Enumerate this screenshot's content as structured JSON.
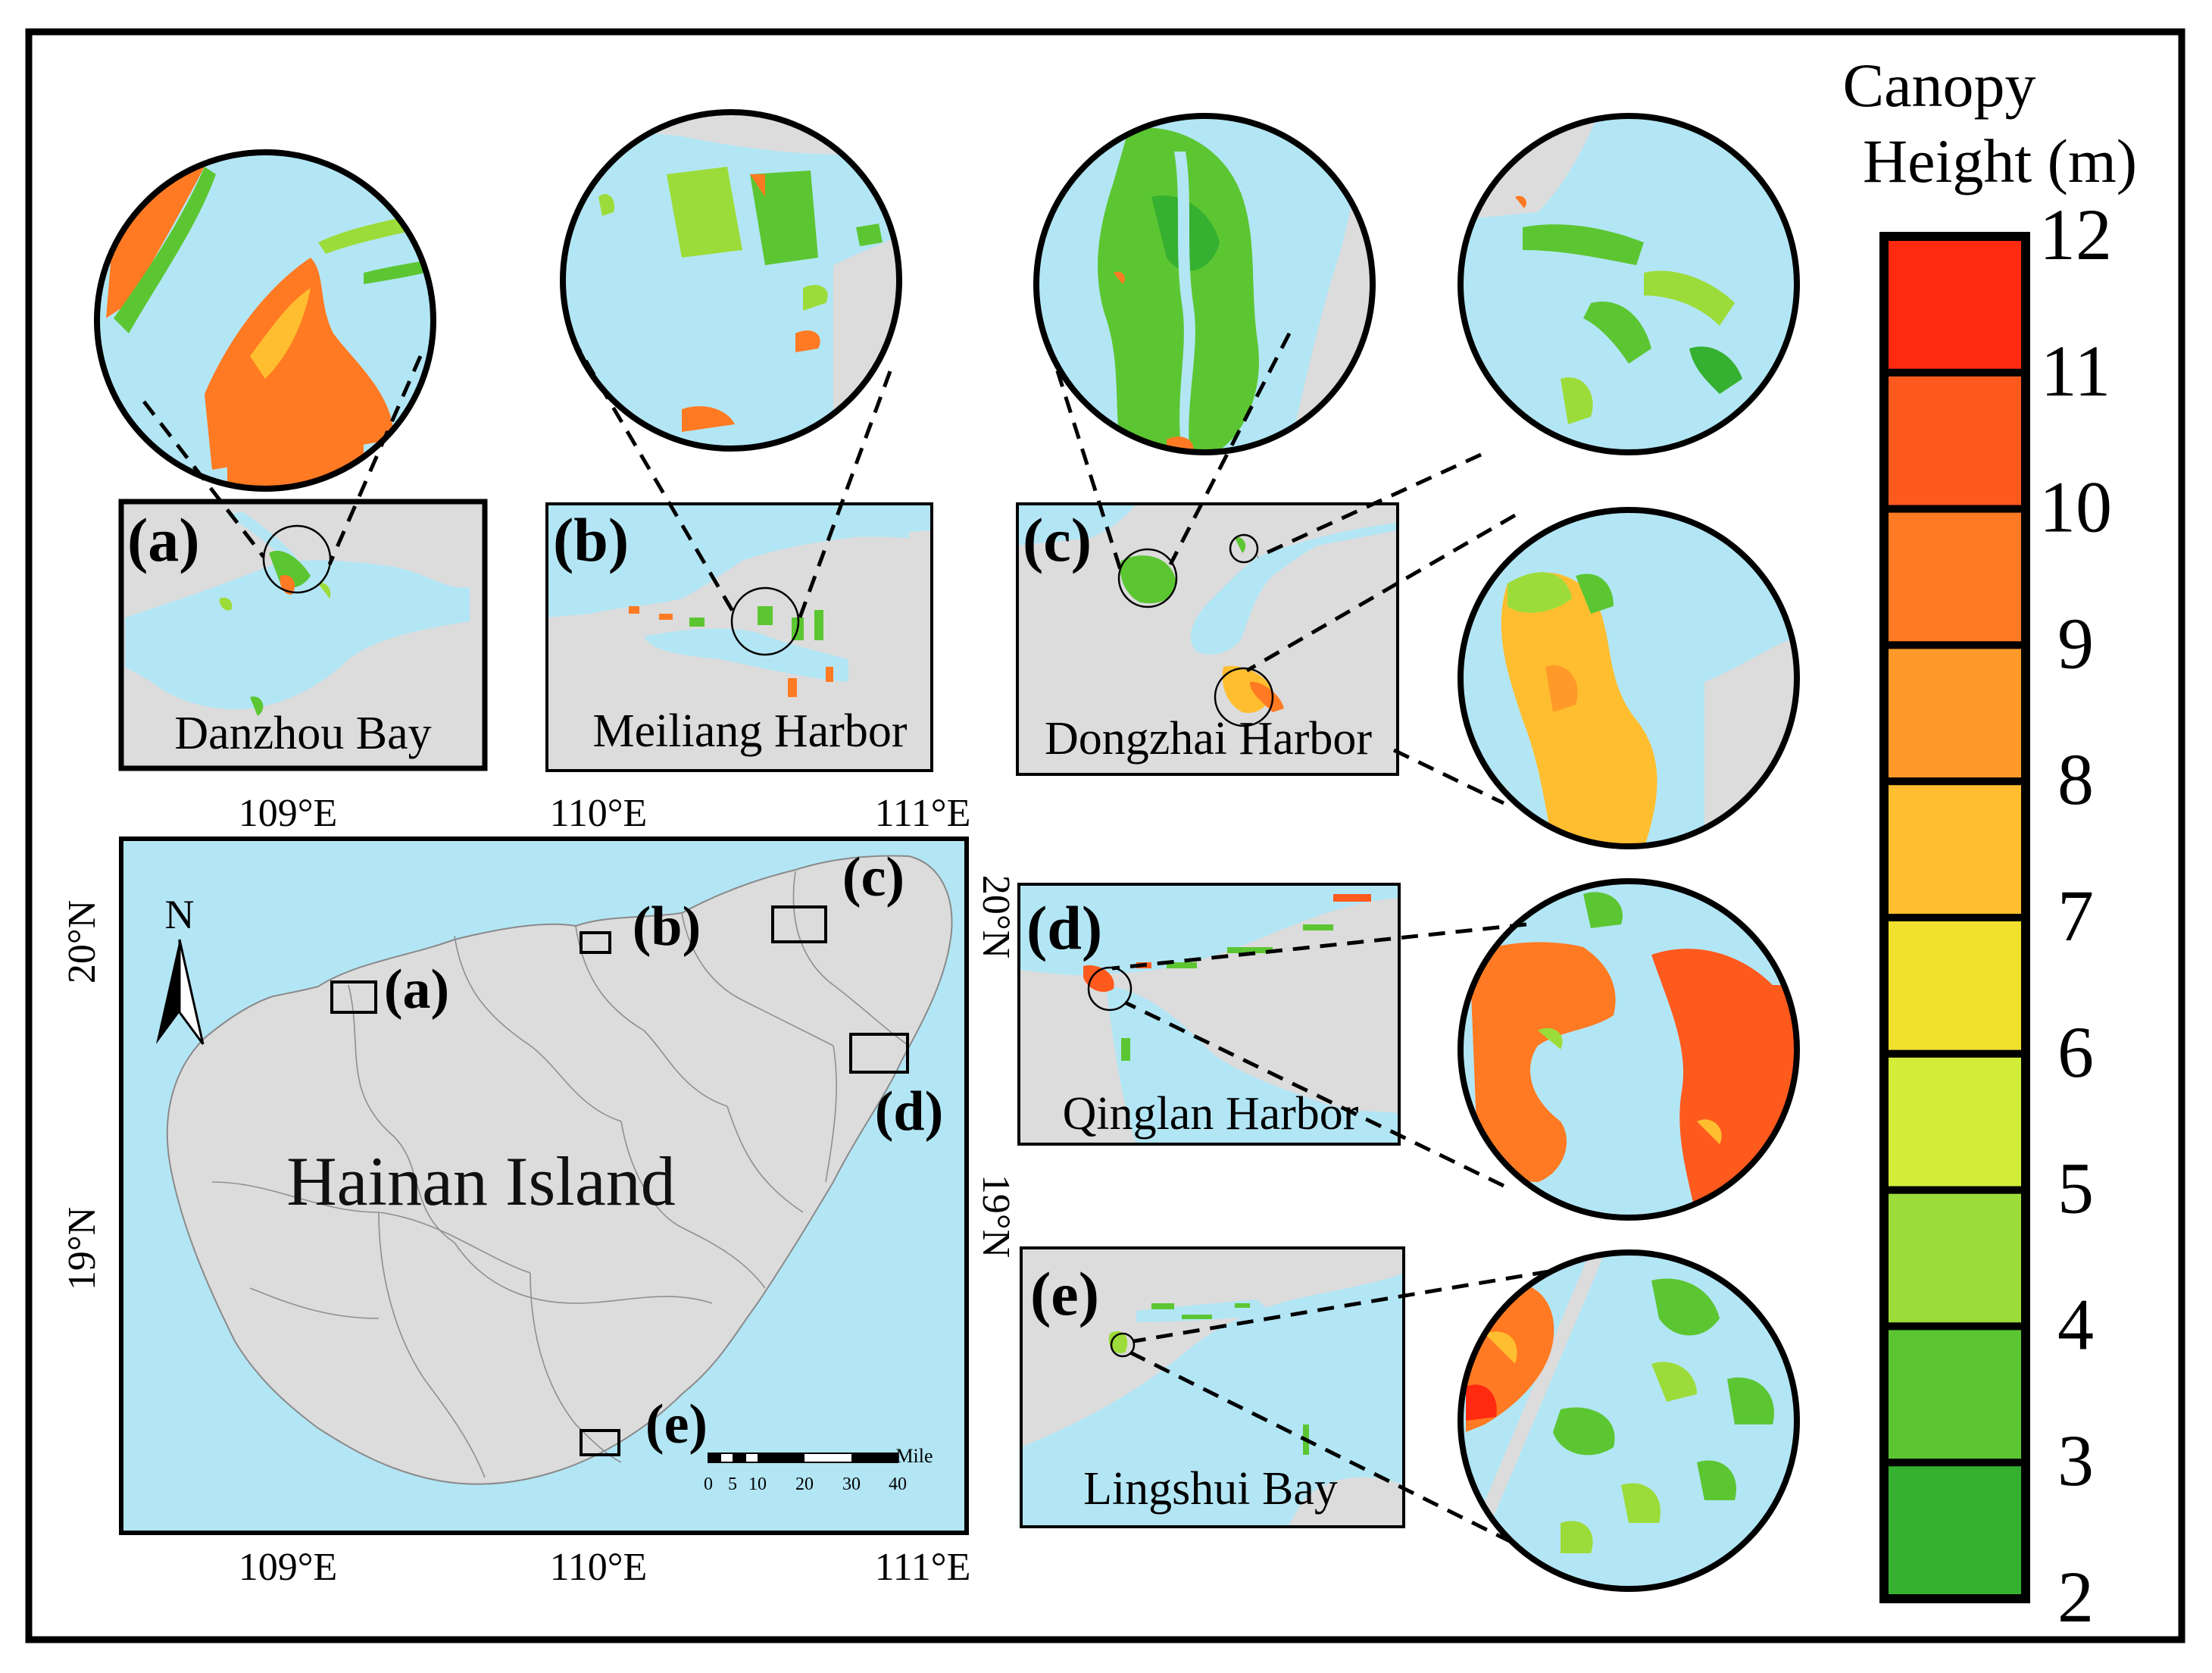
{
  "map": {
    "title": "Hainan Island",
    "north": "N",
    "lon_labels": [
      "109°E",
      "110°E",
      "111°E"
    ],
    "lat_labels": [
      "20°N",
      "19°N"
    ],
    "scale": {
      "unit": "Mile",
      "ticks": [
        "0",
        "5",
        "10",
        "20",
        "30",
        "40"
      ]
    },
    "colors": {
      "sea": "#b3e6f5",
      "land": "#dcdcdc",
      "border": "#777777"
    }
  },
  "sites": [
    {
      "key": "a",
      "letter": "(a)",
      "name": "Danzhou Bay"
    },
    {
      "key": "b",
      "letter": "(b)",
      "name": "Meiliang Harbor"
    },
    {
      "key": "c",
      "letter": "(c)",
      "name": "Dongzhai Harbor"
    },
    {
      "key": "d",
      "letter": "(d)",
      "name": "Qinglan Harbor"
    },
    {
      "key": "e",
      "letter": "(e)",
      "name": "Lingshui Bay"
    }
  ],
  "colorbar": {
    "title_line1": "Canopy",
    "title_line2": "Height (m)",
    "ticks": [
      "12",
      "11",
      "10",
      "9",
      "8",
      "7",
      "6",
      "5",
      "4",
      "3",
      "2"
    ],
    "colors": [
      "#ff2a10",
      "#ff5a1e",
      "#ff7a22",
      "#ff9a2a",
      "#ffbe30",
      "#f2e02e",
      "#d2ec3a",
      "#9cdc3a",
      "#5cc632",
      "#36b030"
    ]
  }
}
